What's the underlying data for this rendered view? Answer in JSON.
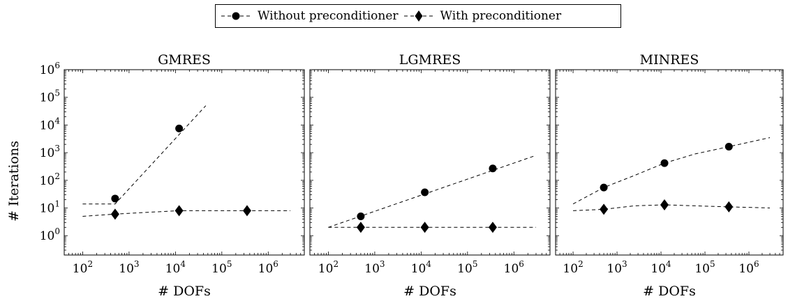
{
  "legend": {
    "without_label": "Without preconditioner",
    "with_label": "With preconditioner"
  },
  "ylabel": "# Iterations",
  "chart_data": [
    {
      "type": "line",
      "title": "GMRES",
      "xlabel": "# DOFs",
      "ylabel": "# Iterations",
      "xscale": "log",
      "yscale": "log",
      "xlim": [
        40,
        6000000
      ],
      "ylim": [
        0.2,
        1000000
      ],
      "xticks": [
        {
          "v": 100,
          "label": "10^2"
        },
        {
          "v": 1000,
          "label": "10^3"
        },
        {
          "v": 10000,
          "label": "10^4"
        },
        {
          "v": 100000,
          "label": "10^5"
        },
        {
          "v": 1000000,
          "label": "10^6"
        }
      ],
      "yticks": [
        {
          "v": 1,
          "label": "10^0"
        },
        {
          "v": 10,
          "label": "10^1"
        },
        {
          "v": 100,
          "label": "10^2"
        },
        {
          "v": 1000,
          "label": "10^3"
        },
        {
          "v": 10000,
          "label": "10^4"
        },
        {
          "v": 100000,
          "label": "10^5"
        },
        {
          "v": 1000000,
          "label": "10^6"
        }
      ],
      "show_yticklabels": true,
      "series": [
        {
          "name": "Without preconditioner",
          "marker": "circle",
          "x": [
            500,
            12000
          ],
          "y": [
            22,
            7500
          ],
          "fit": [
            [
              100,
              14
            ],
            [
              500,
              14
            ],
            [
              45000,
              50000
            ]
          ]
        },
        {
          "name": "With preconditioner",
          "marker": "diamond",
          "x": [
            500,
            12000,
            350000
          ],
          "y": [
            6,
            8,
            8
          ],
          "fit": [
            [
              100,
              5
            ],
            [
              500,
              6
            ],
            [
              2500,
              7
            ],
            [
              12000,
              8
            ],
            [
              350000,
              8
            ],
            [
              3000000,
              8
            ]
          ]
        }
      ]
    },
    {
      "type": "line",
      "title": "LGMRES",
      "xlabel": "# DOFs",
      "ylabel": "# Iterations",
      "xscale": "log",
      "yscale": "log",
      "xlim": [
        40,
        6000000
      ],
      "ylim": [
        0.2,
        1000000
      ],
      "xticks": [
        {
          "v": 100,
          "label": "10^2"
        },
        {
          "v": 1000,
          "label": "10^3"
        },
        {
          "v": 10000,
          "label": "10^4"
        },
        {
          "v": 100000,
          "label": "10^5"
        },
        {
          "v": 1000000,
          "label": "10^6"
        }
      ],
      "yticks": [
        {
          "v": 1,
          "label": "10^0"
        },
        {
          "v": 10,
          "label": "10^1"
        },
        {
          "v": 100,
          "label": "10^2"
        },
        {
          "v": 1000,
          "label": "10^3"
        },
        {
          "v": 10000,
          "label": "10^4"
        },
        {
          "v": 100000,
          "label": "10^5"
        },
        {
          "v": 1000000,
          "label": "10^6"
        }
      ],
      "show_yticklabels": false,
      "series": [
        {
          "name": "Without preconditioner",
          "marker": "circle",
          "x": [
            500,
            12000,
            350000
          ],
          "y": [
            5,
            37,
            270
          ],
          "fit": [
            [
              100,
              2
            ],
            [
              3000000,
              800
            ]
          ]
        },
        {
          "name": "With preconditioner",
          "marker": "diamond",
          "x": [
            500,
            12000,
            350000
          ],
          "y": [
            2,
            2,
            2
          ],
          "fit": [
            [
              100,
              2
            ],
            [
              3000000,
              2
            ]
          ]
        }
      ]
    },
    {
      "type": "line",
      "title": "MINRES",
      "xlabel": "# DOFs",
      "ylabel": "# Iterations",
      "xscale": "log",
      "yscale": "log",
      "xlim": [
        40,
        6000000
      ],
      "ylim": [
        0.2,
        1000000
      ],
      "xticks": [
        {
          "v": 100,
          "label": "10^2"
        },
        {
          "v": 1000,
          "label": "10^3"
        },
        {
          "v": 10000,
          "label": "10^4"
        },
        {
          "v": 100000,
          "label": "10^5"
        },
        {
          "v": 1000000,
          "label": "10^6"
        }
      ],
      "yticks": [
        {
          "v": 1,
          "label": "10^0"
        },
        {
          "v": 10,
          "label": "10^1"
        },
        {
          "v": 100,
          "label": "10^2"
        },
        {
          "v": 1000,
          "label": "10^3"
        },
        {
          "v": 10000,
          "label": "10^4"
        },
        {
          "v": 100000,
          "label": "10^5"
        },
        {
          "v": 1000000,
          "label": "10^6"
        }
      ],
      "show_yticklabels": false,
      "series": [
        {
          "name": "Without preconditioner",
          "marker": "circle",
          "x": [
            500,
            12000,
            350000
          ],
          "y": [
            55,
            420,
            1650
          ],
          "fit": [
            [
              100,
              14
            ],
            [
              500,
              55
            ],
            [
              2500,
              150
            ],
            [
              12000,
              420
            ],
            [
              60000,
              900
            ],
            [
              350000,
              1650
            ],
            [
              3000000,
              3500
            ]
          ]
        },
        {
          "name": "With preconditioner",
          "marker": "diamond",
          "x": [
            500,
            12000,
            350000
          ],
          "y": [
            9,
            13,
            11
          ],
          "fit": [
            [
              100,
              8
            ],
            [
              500,
              9
            ],
            [
              2500,
              12
            ],
            [
              12000,
              13
            ],
            [
              350000,
              11
            ],
            [
              3000000,
              10
            ]
          ]
        }
      ]
    }
  ]
}
